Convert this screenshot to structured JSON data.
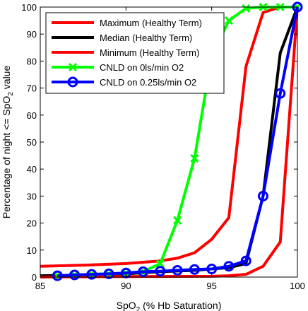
{
  "chart_data": {
    "type": "line",
    "xlabel_main": "SpO",
    "xlabel_sub": "2",
    "xlabel_rest": " (% Hb Saturation)",
    "ylabel_main": "Percentage of night <= SpO",
    "ylabel_sub": "2",
    "ylabel_rest": " value",
    "xlim": [
      85,
      100
    ],
    "ylim": [
      0,
      100
    ],
    "xticks": [
      85,
      90,
      95,
      100
    ],
    "yticks": [
      0,
      10,
      20,
      30,
      40,
      50,
      60,
      70,
      80,
      90,
      100
    ],
    "grid": false,
    "legend_position": "top-left",
    "series": [
      {
        "name": "Maximum (Healthy Term)",
        "color": "#ff0000",
        "marker": "none",
        "x": [
          85,
          88,
          90,
          92,
          93,
          94,
          95,
          96,
          97,
          98,
          99,
          100
        ],
        "y": [
          4,
          4.5,
          5,
          6,
          7,
          9,
          14,
          22,
          78,
          98,
          100,
          100
        ]
      },
      {
        "name": "Median (Healthy Term)",
        "color": "#000000",
        "marker": "none",
        "x": [
          85,
          88,
          90,
          92,
          94,
          95,
          96,
          97,
          98,
          99,
          100
        ],
        "y": [
          0.5,
          0.8,
          1.2,
          2,
          2.5,
          3,
          3.5,
          5,
          30,
          83,
          100
        ]
      },
      {
        "name": "Minimum (Healthy Term)",
        "color": "#ff0000",
        "marker": "none",
        "x": [
          85,
          90,
          95,
          96,
          97,
          98,
          99,
          100
        ],
        "y": [
          0,
          0.2,
          0.3,
          0.5,
          1,
          4,
          13,
          100
        ]
      },
      {
        "name": "CNLD on 0ls/min O2",
        "color": "#00ff00",
        "marker": "x",
        "x": [
          86,
          87,
          88,
          89,
          90,
          91,
          92,
          93,
          94,
          95,
          96,
          97,
          98,
          99,
          100
        ],
        "y": [
          0.5,
          0.8,
          1,
          1.2,
          1.5,
          2,
          5,
          21,
          44,
          82,
          95,
          99.5,
          100,
          100,
          100
        ]
      },
      {
        "name": "CNLD on 0.25ls/min O2",
        "color": "#0000ff",
        "marker": "circle",
        "x": [
          86,
          87,
          88,
          89,
          90,
          91,
          92,
          93,
          94,
          95,
          96,
          97,
          98,
          99,
          100
        ],
        "y": [
          0.5,
          0.8,
          1,
          1.2,
          1.5,
          2,
          2.2,
          2.5,
          2.8,
          3,
          4,
          6,
          30,
          68,
          100
        ]
      }
    ]
  }
}
